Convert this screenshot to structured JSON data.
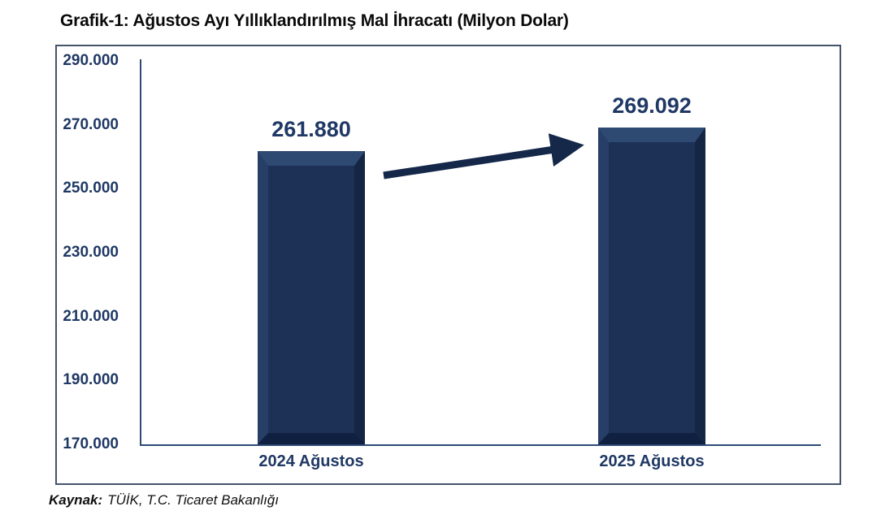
{
  "title": "Grafik-1: Ağustos Ayı Yıllıklandırılmış Mal İhracatı (Milyon Dolar)",
  "source": {
    "label": "Kaynak:",
    "text": "TÜİK, T.C. Ticaret Bakanlığı"
  },
  "chart_data": {
    "type": "bar",
    "title": "Grafik-1: Ağustos Ayı Yıllıklandırılmış Mal İhracatı (Milyon Dolar)",
    "categories": [
      "2024 Ağustos",
      "2025 Ağustos"
    ],
    "values": [
      261880,
      269092
    ],
    "value_labels": [
      "261.880",
      "269.092"
    ],
    "xlabel": "",
    "ylabel": "",
    "ylim": [
      170000,
      290000
    ],
    "yticks": [
      290000,
      270000,
      250000,
      230000,
      210000,
      190000,
      170000
    ],
    "ytick_labels": [
      "290.000",
      "270.000",
      "250.000",
      "230.000",
      "210.000",
      "190.000",
      "170.000"
    ],
    "grid": false,
    "legend": false,
    "annotations": [
      {
        "name": "increase-arrow",
        "from_category": "2024 Ağustos",
        "to_category": "2025 Ağustos"
      }
    ],
    "colors": {
      "bar_fill": "#1d3156",
      "bar_bevel_light": "#2f4a72",
      "bar_bevel_dark": "#0f2040",
      "text_navy": "#1f3864",
      "axis_line": "#2e4a74",
      "frame_border": "#44546a",
      "arrow": "#15284a",
      "title_text": "#0a0a0a"
    }
  }
}
